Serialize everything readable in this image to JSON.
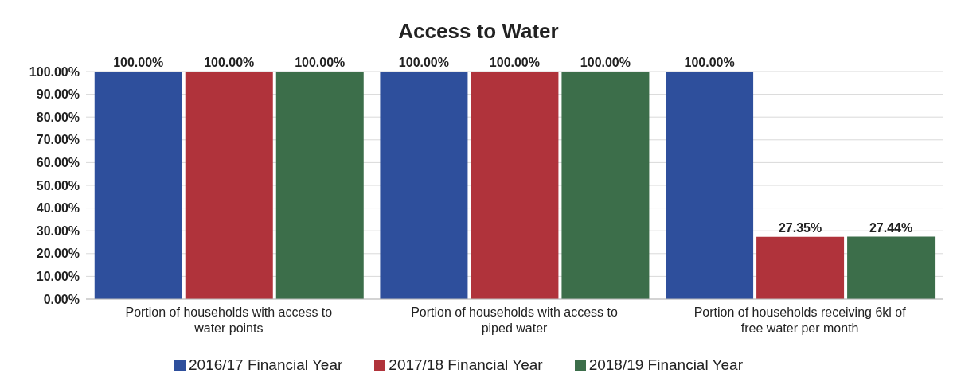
{
  "chart_data": {
    "type": "bar",
    "title": "Access to Water",
    "categories": [
      "Portion of households with access to water points",
      "Portion of households with access to piped water",
      "Portion of households receiving 6kl of free water per month"
    ],
    "series": [
      {
        "name": "2016/17 Financial Year",
        "color": "#2e4f9c",
        "values": [
          100,
          100,
          100
        ],
        "value_labels": [
          "100.00%",
          "100.00%",
          "100.00%"
        ]
      },
      {
        "name": "2017/18 Financial Year",
        "color": "#b0333b",
        "values": [
          100,
          100,
          27.35
        ],
        "value_labels": [
          "100.00%",
          "100.00%",
          "27.35%"
        ]
      },
      {
        "name": "2018/19 Financial Year",
        "color": "#3c6e4a",
        "values": [
          100,
          100,
          27.44
        ],
        "value_labels": [
          "100.00%",
          "100.00%",
          "27.44%"
        ]
      }
    ],
    "ylim": [
      0,
      100
    ],
    "yticks": [
      {
        "value": 0,
        "label": "0.00%"
      },
      {
        "value": 10,
        "label": "10.00%"
      },
      {
        "value": 20,
        "label": "20.00%"
      },
      {
        "value": 30,
        "label": "30.00%"
      },
      {
        "value": 40,
        "label": "40.00%"
      },
      {
        "value": 50,
        "label": "50.00%"
      },
      {
        "value": 60,
        "label": "60.00%"
      },
      {
        "value": 70,
        "label": "70.00%"
      },
      {
        "value": 80,
        "label": "80.00%"
      },
      {
        "value": 90,
        "label": "90.00%"
      },
      {
        "value": 100,
        "label": "100.00%"
      }
    ],
    "grid": "y",
    "legend": "bottom"
  }
}
